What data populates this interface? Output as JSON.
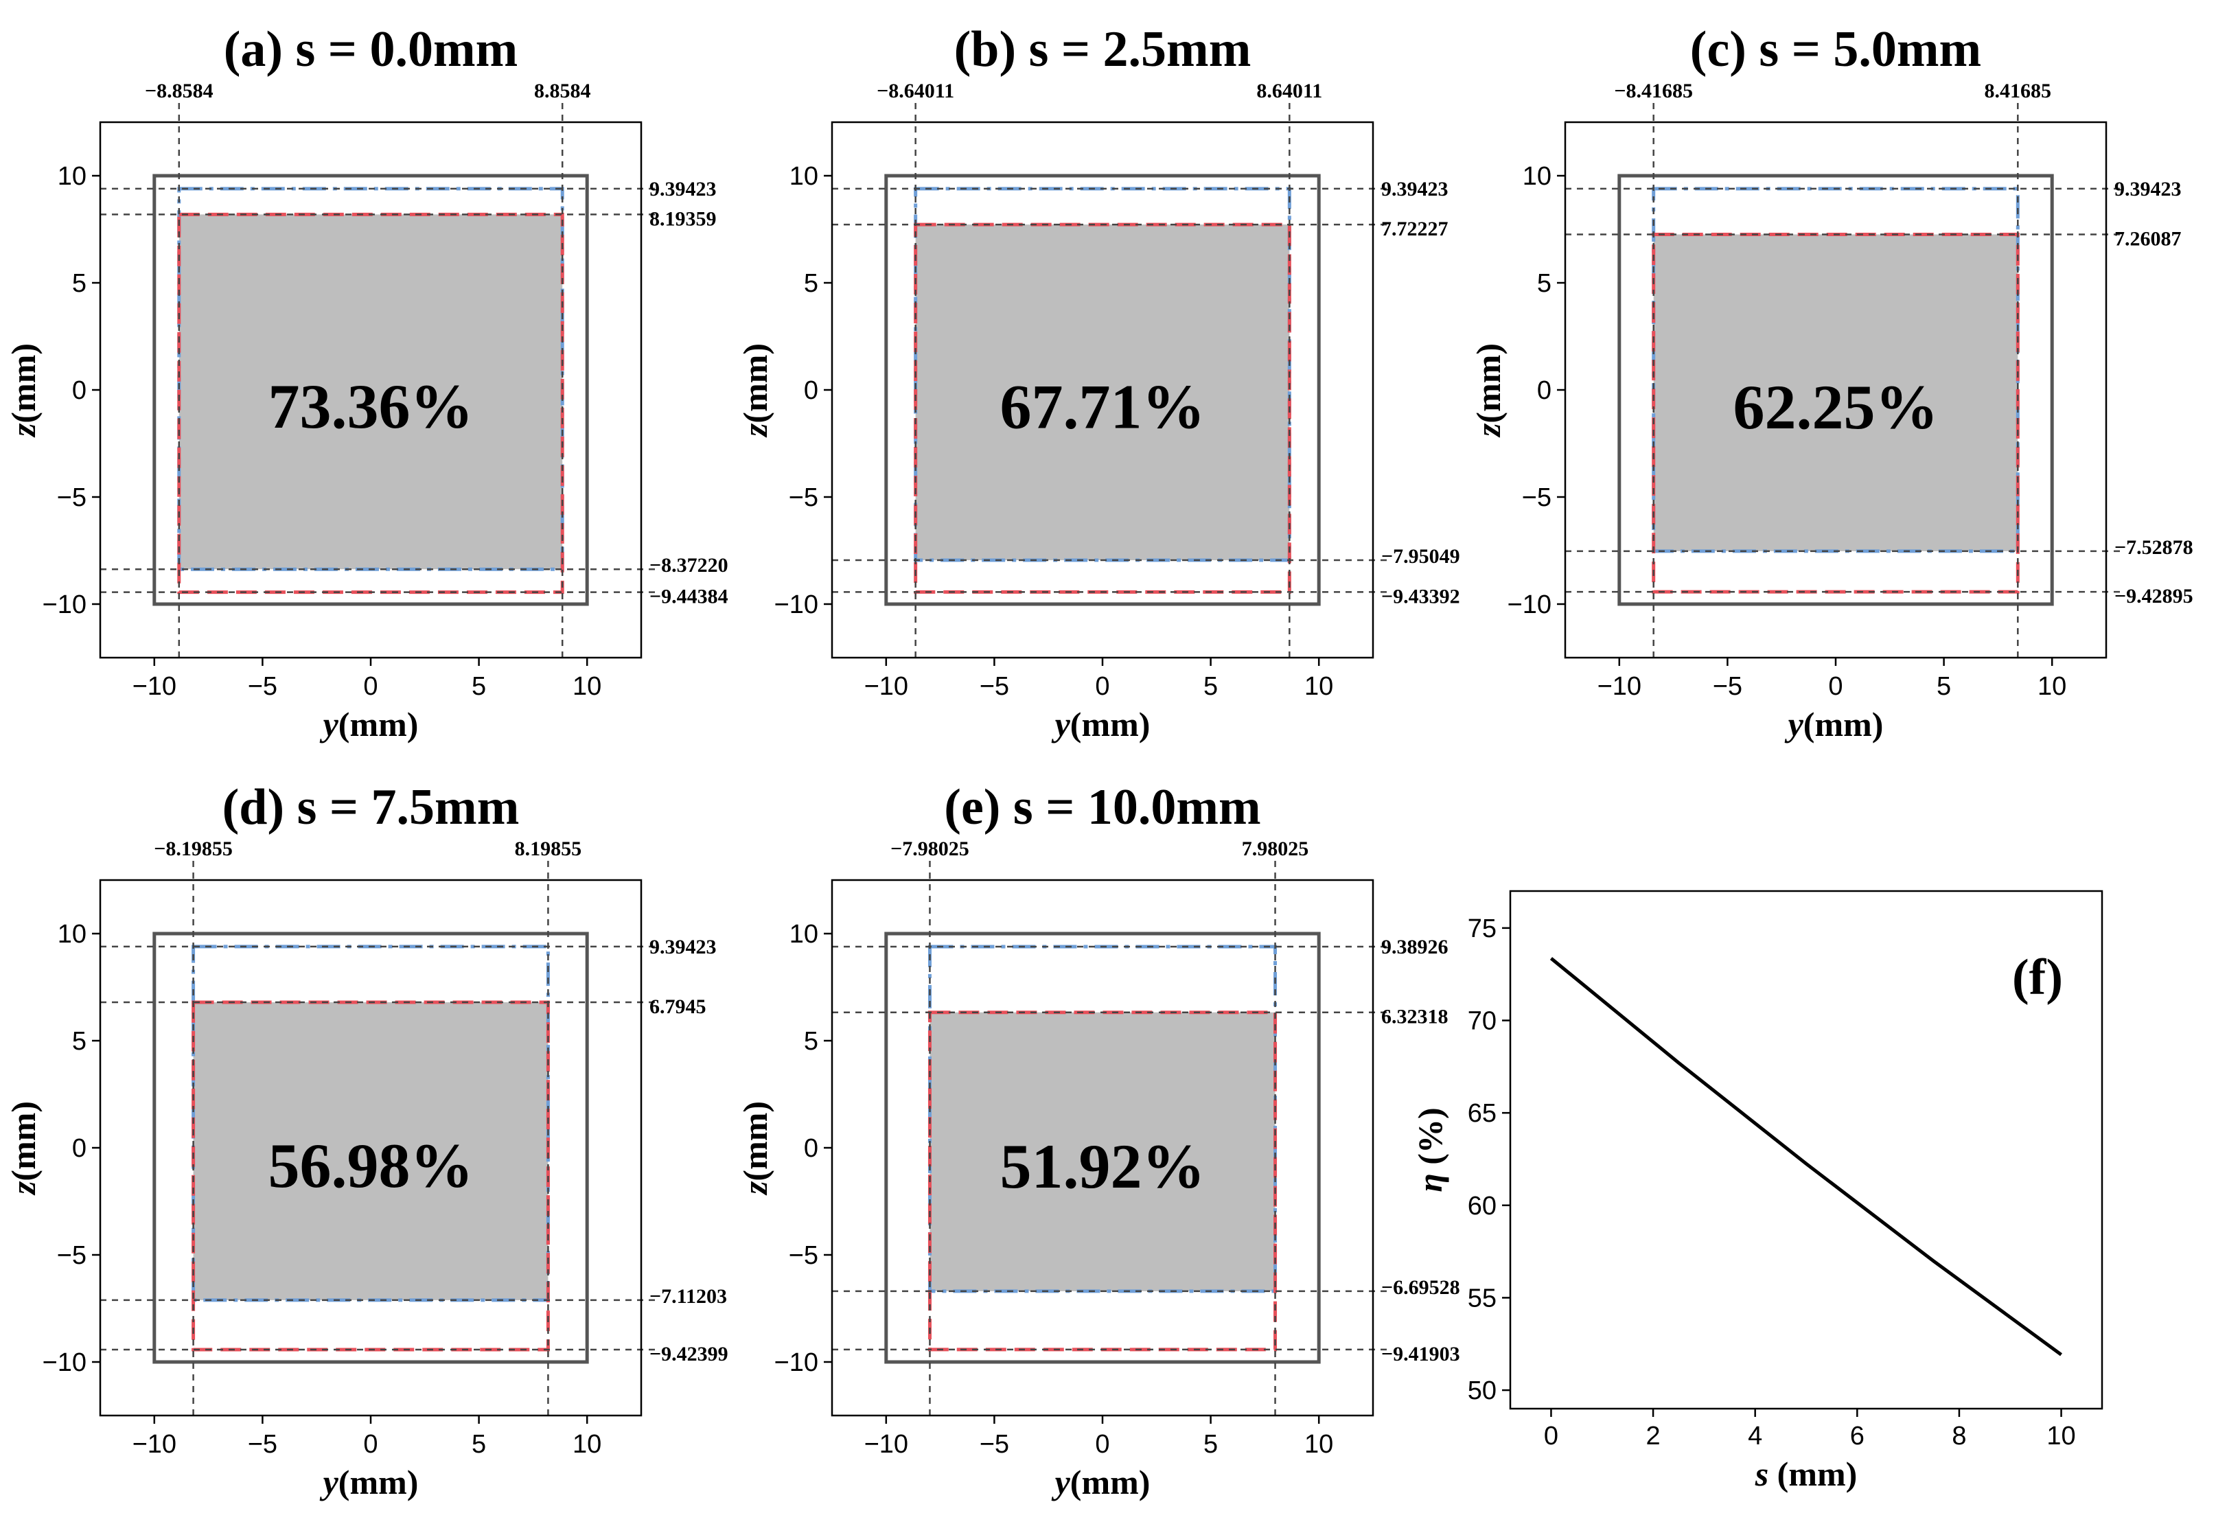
{
  "figure": {
    "colors": {
      "outer_square": "#555555",
      "blue_boundary": "#6f9fd8",
      "red_boundary": "#e8505a",
      "shaded": "#bebebe",
      "guide_lines": "#444444",
      "axes": "#000000"
    }
  },
  "chart_data": [
    {
      "type": "area",
      "panel": "a",
      "title": "(a) s = 0.0mm",
      "xlabel_var": "y",
      "xlabel_unit": "(mm)",
      "ylabel_var": "z",
      "ylabel_unit": "(mm)",
      "xlim": [
        -12.5,
        12.5
      ],
      "ylim": [
        -12.5,
        12.5
      ],
      "xticks": [
        -10,
        -5,
        0,
        5,
        10
      ],
      "yticks": [
        -10,
        -5,
        0,
        5,
        10
      ],
      "xtick_labels": [
        "−10",
        "−5",
        "0",
        "5",
        "10"
      ],
      "ytick_labels": [
        "−10",
        "−5",
        "0",
        "5",
        "10"
      ],
      "outer_square": [
        -10,
        10
      ],
      "y_bounds": [
        -8.8584,
        8.8584
      ],
      "y_bound_labels": [
        "−8.8584",
        "8.8584"
      ],
      "blue_z": [
        -8.3722,
        9.39423
      ],
      "red_z": [
        -9.44384,
        8.19359
      ],
      "blue_z_labels": [
        "−8.37220",
        "9.39423"
      ],
      "red_z_labels": [
        "−9.44384",
        "8.19359"
      ],
      "efficiency": 73.36,
      "efficiency_label": "73.36%"
    },
    {
      "type": "area",
      "panel": "b",
      "title": "(b) s = 2.5mm",
      "xlabel_var": "y",
      "xlabel_unit": "(mm)",
      "ylabel_var": "z",
      "ylabel_unit": "(mm)",
      "xlim": [
        -12.5,
        12.5
      ],
      "ylim": [
        -12.5,
        12.5
      ],
      "xticks": [
        -10,
        -5,
        0,
        5,
        10
      ],
      "yticks": [
        -10,
        -5,
        0,
        5,
        10
      ],
      "xtick_labels": [
        "−10",
        "−5",
        "0",
        "5",
        "10"
      ],
      "ytick_labels": [
        "−10",
        "−5",
        "0",
        "5",
        "10"
      ],
      "outer_square": [
        -10,
        10
      ],
      "y_bounds": [
        -8.64011,
        8.64011
      ],
      "y_bound_labels": [
        "−8.64011",
        "8.64011"
      ],
      "blue_z": [
        -7.95049,
        9.39423
      ],
      "red_z": [
        -9.43392,
        7.72227
      ],
      "blue_z_labels": [
        "−7.95049",
        "9.39423"
      ],
      "red_z_labels": [
        "−9.43392",
        "7.72227"
      ],
      "efficiency": 67.71,
      "efficiency_label": "67.71%"
    },
    {
      "type": "area",
      "panel": "c",
      "title": "(c) s = 5.0mm",
      "xlabel_var": "y",
      "xlabel_unit": "(mm)",
      "ylabel_var": "z",
      "ylabel_unit": "(mm)",
      "xlim": [
        -12.5,
        12.5
      ],
      "ylim": [
        -12.5,
        12.5
      ],
      "xticks": [
        -10,
        -5,
        0,
        5,
        10
      ],
      "yticks": [
        -10,
        -5,
        0,
        5,
        10
      ],
      "xtick_labels": [
        "−10",
        "−5",
        "0",
        "5",
        "10"
      ],
      "ytick_labels": [
        "−10",
        "−5",
        "0",
        "5",
        "10"
      ],
      "outer_square": [
        -10,
        10
      ],
      "y_bounds": [
        -8.41685,
        8.41685
      ],
      "y_bound_labels": [
        "−8.41685",
        "8.41685"
      ],
      "blue_z": [
        -7.52878,
        9.39423
      ],
      "red_z": [
        -9.42895,
        7.26087
      ],
      "blue_z_labels": [
        "−7.52878",
        "9.39423"
      ],
      "red_z_labels": [
        "−9.42895",
        "7.26087"
      ],
      "efficiency": 62.25,
      "efficiency_label": "62.25%"
    },
    {
      "type": "area",
      "panel": "d",
      "title": "(d) s = 7.5mm",
      "xlabel_var": "y",
      "xlabel_unit": "(mm)",
      "ylabel_var": "z",
      "ylabel_unit": "(mm)",
      "xlim": [
        -12.5,
        12.5
      ],
      "ylim": [
        -12.5,
        12.5
      ],
      "xticks": [
        -10,
        -5,
        0,
        5,
        10
      ],
      "yticks": [
        -10,
        -5,
        0,
        5,
        10
      ],
      "xtick_labels": [
        "−10",
        "−5",
        "0",
        "5",
        "10"
      ],
      "ytick_labels": [
        "−10",
        "−5",
        "0",
        "5",
        "10"
      ],
      "outer_square": [
        -10,
        10
      ],
      "y_bounds": [
        -8.19855,
        8.19855
      ],
      "y_bound_labels": [
        "−8.19855",
        "8.19855"
      ],
      "blue_z": [
        -7.11203,
        9.39423
      ],
      "red_z": [
        -9.42399,
        6.7945
      ],
      "blue_z_labels": [
        "−7.11203",
        "9.39423"
      ],
      "red_z_labels": [
        "−9.42399",
        "6.7945"
      ],
      "efficiency": 56.98,
      "efficiency_label": "56.98%"
    },
    {
      "type": "area",
      "panel": "e",
      "title": "(e) s = 10.0mm",
      "xlabel_var": "y",
      "xlabel_unit": "(mm)",
      "ylabel_var": "z",
      "ylabel_unit": "(mm)",
      "xlim": [
        -12.5,
        12.5
      ],
      "ylim": [
        -12.5,
        12.5
      ],
      "xticks": [
        -10,
        -5,
        0,
        5,
        10
      ],
      "yticks": [
        -10,
        -5,
        0,
        5,
        10
      ],
      "xtick_labels": [
        "−10",
        "−5",
        "0",
        "5",
        "10"
      ],
      "ytick_labels": [
        "−10",
        "−5",
        "0",
        "5",
        "10"
      ],
      "outer_square": [
        -10,
        10
      ],
      "y_bounds": [
        -7.98025,
        7.98025
      ],
      "y_bound_labels": [
        "−7.98025",
        "7.98025"
      ],
      "blue_z": [
        -6.69528,
        9.38926
      ],
      "red_z": [
        -9.41903,
        6.32318
      ],
      "blue_z_labels": [
        "−6.69528",
        "9.38926"
      ],
      "red_z_labels": [
        "−9.41903",
        "6.32318"
      ],
      "efficiency": 51.92,
      "efficiency_label": "51.92%"
    },
    {
      "type": "line",
      "panel": "f",
      "title": "(f)",
      "xlabel_var": "s",
      "xlabel_unit": " (mm)",
      "ylabel_var": "η",
      "ylabel_unit": " (%)",
      "xlim": [
        -0.8,
        10.8
      ],
      "ylim": [
        49,
        77
      ],
      "xticks": [
        0,
        2,
        4,
        6,
        8,
        10
      ],
      "yticks": [
        50,
        55,
        60,
        65,
        70,
        75
      ],
      "xtick_labels": [
        "0",
        "2",
        "4",
        "6",
        "8",
        "10"
      ],
      "ytick_labels": [
        "50",
        "55",
        "60",
        "65",
        "70",
        "75"
      ],
      "series": [
        {
          "name": "eta",
          "x": [
            0,
            2.5,
            5,
            7.5,
            10
          ],
          "y": [
            73.36,
            67.71,
            62.25,
            56.98,
            51.92
          ]
        }
      ]
    }
  ]
}
